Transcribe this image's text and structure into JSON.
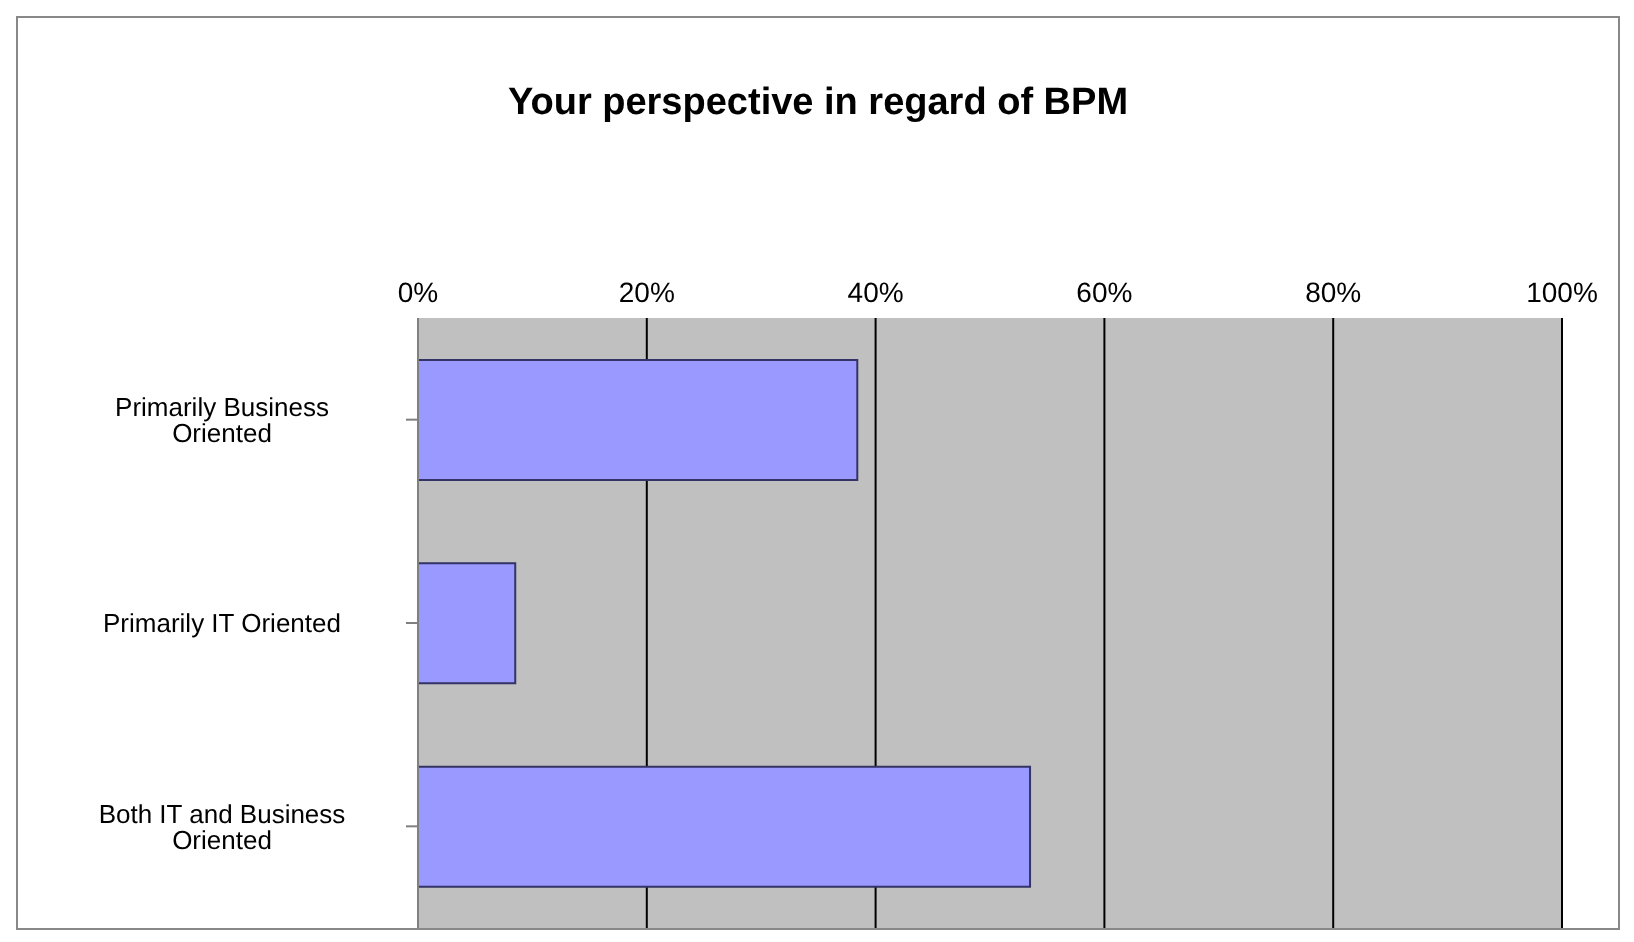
{
  "chart_data": {
    "type": "bar",
    "orientation": "horizontal",
    "title": "Your perspective in regard of BPM",
    "categories": [
      "Primarily Business Oriented",
      "Primarily IT Oriented",
      "Both IT and Business Oriented"
    ],
    "values": [
      38.4,
      8.5,
      53.5
    ],
    "color": "#9999ff",
    "xlim": [
      0,
      100
    ],
    "xticks": [
      {
        "value": 0,
        "label": "0%"
      },
      {
        "value": 20,
        "label": "20%"
      },
      {
        "value": 40,
        "label": "40%"
      },
      {
        "value": 60,
        "label": "60%"
      },
      {
        "value": 80,
        "label": "80%"
      },
      {
        "value": 100,
        "label": "100%"
      }
    ],
    "grid": "x",
    "legend": false
  }
}
